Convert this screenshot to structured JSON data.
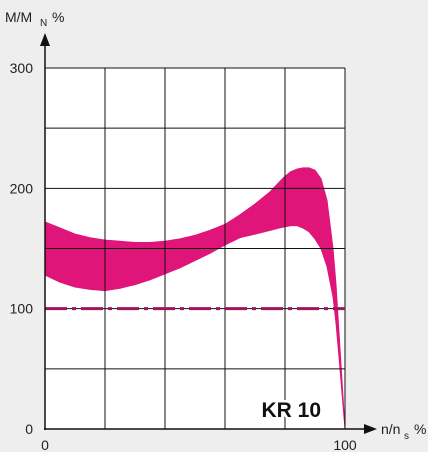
{
  "colors": {
    "background": "#eeeeee",
    "plot_area": "#ffffff",
    "grid": "#111111",
    "band": "#e0157a",
    "reference_line": "#a0135e"
  },
  "chart_data": {
    "type": "area",
    "title": "",
    "xlabel": "n/n",
    "xlabel_sub": "s",
    "xlabel_unit": "%",
    "ylabel": "M/M",
    "ylabel_sub": "N",
    "ylabel_unit": "%",
    "xlim": [
      0,
      100
    ],
    "ylim": [
      0,
      300
    ],
    "x_tick_labels": [
      "0",
      "100"
    ],
    "y_tick_labels": [
      "0",
      "100",
      "200",
      "300"
    ],
    "grid": true,
    "grid_x_step": 20,
    "grid_y_step": 50,
    "band_label": "KR 10",
    "reference_line": {
      "y": 100,
      "style": "dash-dot"
    },
    "series": [
      {
        "name": "",
        "kind": "band",
        "x": [
          0,
          5,
          10,
          15,
          20,
          25,
          30,
          35,
          40,
          45,
          50,
          55,
          60,
          65,
          70,
          75,
          78,
          80,
          82,
          84,
          86,
          88,
          90,
          92,
          94,
          96,
          97,
          98,
          99,
          100
        ],
        "upper": [
          172,
          167,
          162,
          159,
          157,
          156,
          155,
          155,
          156,
          158,
          161,
          165,
          170,
          178,
          187,
          197,
          205,
          210,
          214,
          216,
          217,
          217,
          215,
          208,
          190,
          150,
          120,
          80,
          40,
          0
        ],
        "lower": [
          128,
          122,
          118,
          116,
          115,
          117,
          120,
          124,
          129,
          134,
          140,
          146,
          153,
          159,
          162,
          165,
          167,
          168,
          169,
          169,
          167,
          164,
          158,
          150,
          135,
          110,
          88,
          60,
          30,
          0
        ]
      }
    ]
  }
}
